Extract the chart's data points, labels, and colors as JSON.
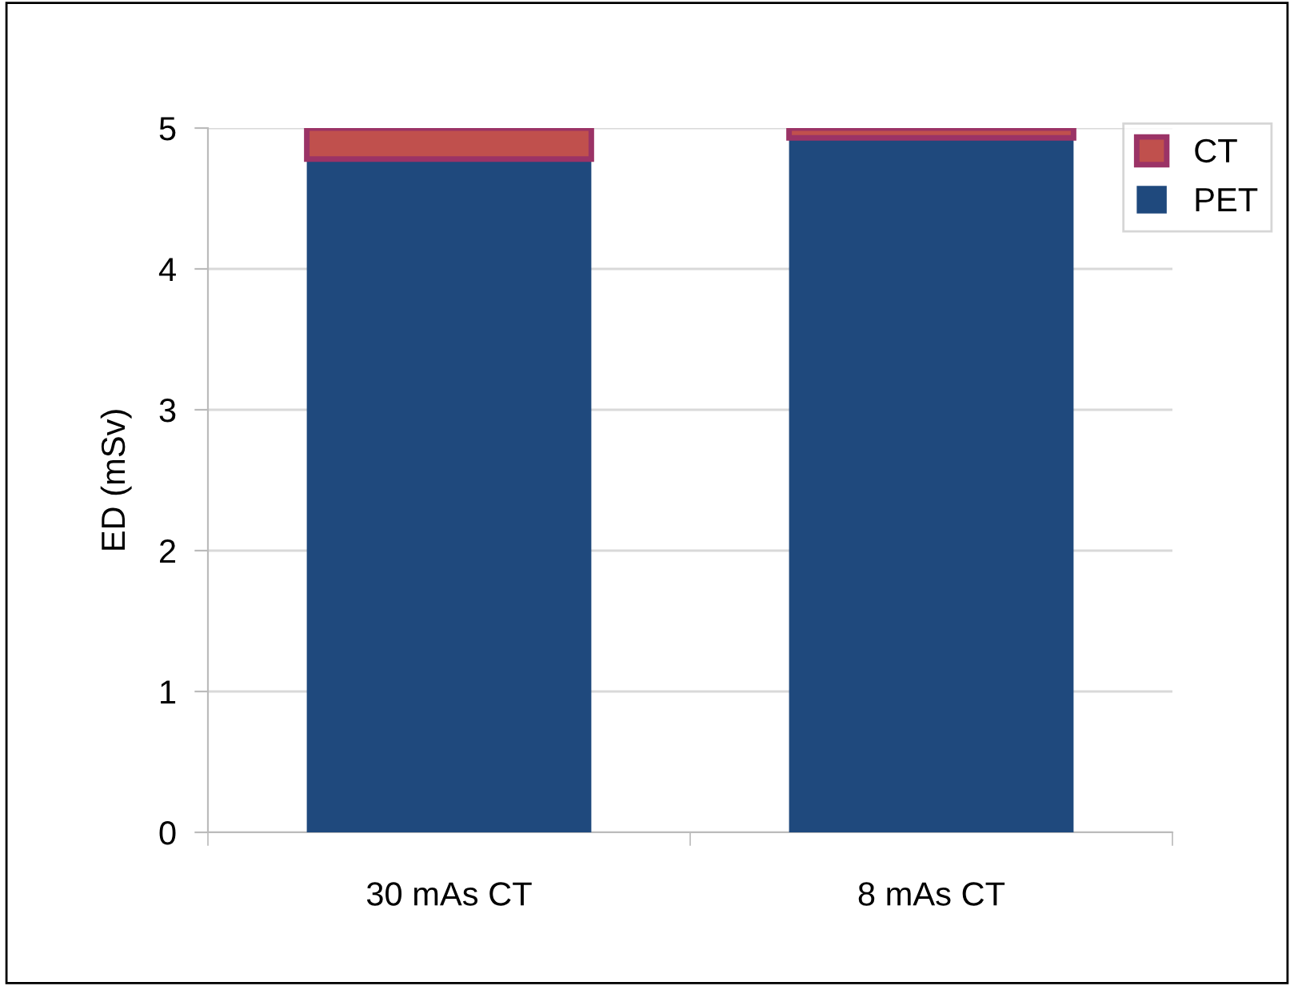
{
  "chart_data": {
    "type": "bar",
    "stacked": true,
    "ylabel": "ED (mSv)",
    "categories": [
      "30 mAs CT",
      "8 mAs CT"
    ],
    "series": [
      {
        "name": "PET",
        "color": "#1f497d",
        "values": [
          4.78,
          4.93
        ]
      },
      {
        "name": "CT",
        "color": "#c0504d",
        "values": [
          0.22,
          0.07
        ]
      }
    ],
    "ylim": [
      0,
      5
    ],
    "yticks": [
      0,
      1,
      2,
      3,
      4,
      5
    ],
    "grid": "y",
    "legend": "top right"
  }
}
